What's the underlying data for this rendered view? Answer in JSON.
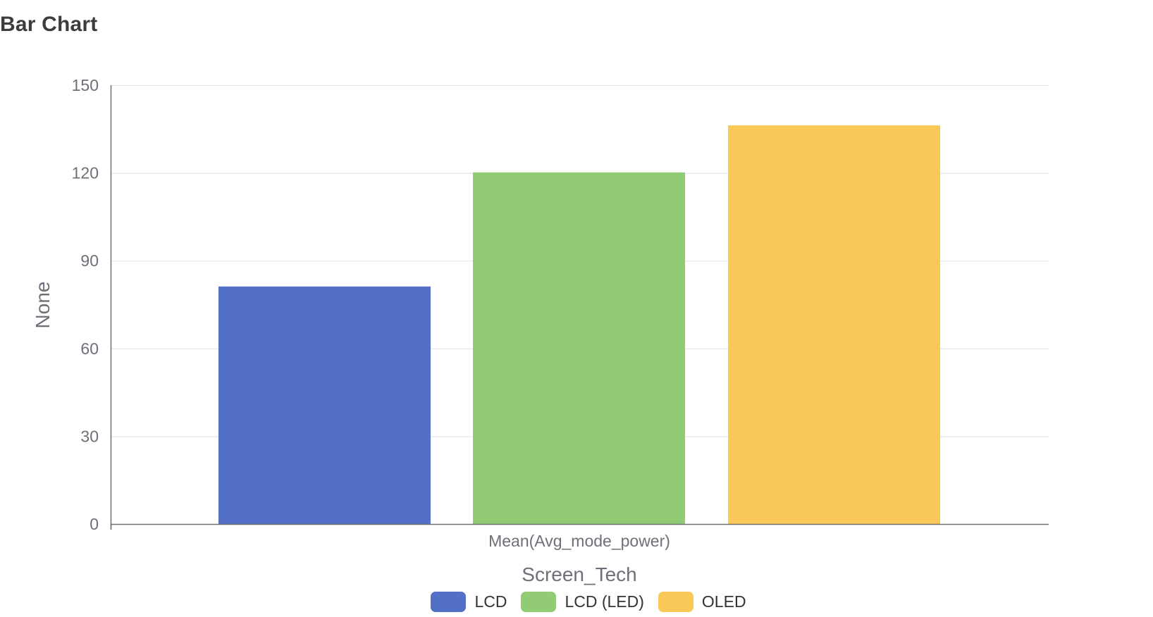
{
  "page": {
    "title": "Bar Chart"
  },
  "chart_data": {
    "type": "bar",
    "categories": [
      "Mean(Avg_mode_power)"
    ],
    "series": [
      {
        "name": "LCD",
        "values": [
          81.2
        ],
        "color": "#5470c6"
      },
      {
        "name": "LCD (LED)",
        "values": [
          120.2
        ],
        "color": "#91cc75"
      },
      {
        "name": "OLED",
        "values": [
          136.3
        ],
        "color": "#fac858"
      }
    ],
    "title": "Bar Chart",
    "xlabel": "Screen_Tech",
    "ylabel": "None",
    "ylim": [
      0,
      150
    ],
    "yticks": [
      "0",
      "30",
      "60",
      "90",
      "120",
      "150"
    ],
    "grid": true,
    "legend_position": "bottom"
  }
}
